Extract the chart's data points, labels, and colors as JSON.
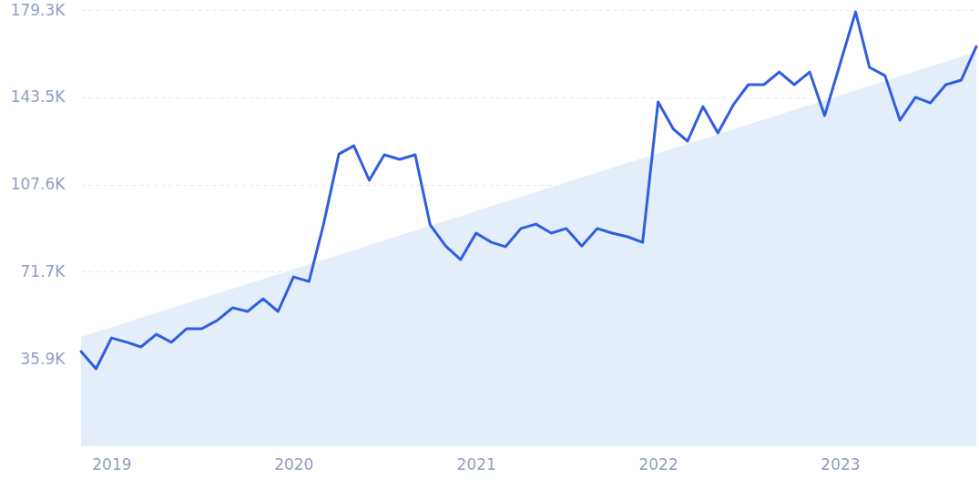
{
  "chart_data": {
    "type": "line",
    "x": [
      "2018-11",
      "2018-12",
      "2019-01",
      "2019-02",
      "2019-03",
      "2019-04",
      "2019-05",
      "2019-06",
      "2019-07",
      "2019-08",
      "2019-09",
      "2019-10",
      "2019-11",
      "2019-12",
      "2020-01",
      "2020-02",
      "2020-03",
      "2020-04",
      "2020-05",
      "2020-06",
      "2020-07",
      "2020-08",
      "2020-09",
      "2020-10",
      "2020-11",
      "2020-12",
      "2021-01",
      "2021-02",
      "2021-03",
      "2021-04",
      "2021-05",
      "2021-06",
      "2021-07",
      "2021-08",
      "2021-09",
      "2021-10",
      "2021-11",
      "2021-12",
      "2022-01",
      "2022-02",
      "2022-03",
      "2022-04",
      "2022-05",
      "2022-06",
      "2022-07",
      "2022-08",
      "2022-09",
      "2022-10",
      "2022-11",
      "2022-12",
      "2023-01",
      "2023-02",
      "2023-03",
      "2023-04",
      "2023-05",
      "2023-06",
      "2023-07",
      "2023-08",
      "2023-09",
      "2023-10"
    ],
    "series": [
      {
        "type": "area",
        "color": "#e4eefb",
        "x": [
          "2018-11",
          "2023-10"
        ],
        "values": [
          44.9,
          162.1
        ]
      },
      {
        "color": "#2f5fe0",
        "values": [
          38.9,
          31.8,
          44.5,
          42.7,
          40.8,
          46.0,
          42.7,
          48.3,
          48.3,
          51.7,
          56.9,
          55.4,
          60.6,
          55.4,
          69.6,
          67.7,
          91.0,
          120.1,
          123.5,
          109.3,
          119.8,
          117.9,
          119.8,
          91.0,
          82.3,
          76.7,
          87.6,
          83.8,
          82.0,
          89.5,
          91.3,
          87.6,
          89.5,
          82.3,
          89.5,
          87.6,
          86.1,
          83.8,
          141.5,
          130.3,
          125.4,
          139.6,
          128.8,
          140.4,
          148.6,
          148.6,
          153.8,
          148.6,
          153.8,
          135.9,
          157.2,
          178.5,
          155.7,
          152.3,
          134.0,
          143.4,
          141.1,
          148.6,
          150.5,
          164.3
        ]
      }
    ],
    "xlim": [
      "2018-11",
      "2023-10"
    ],
    "xticks": [
      "2019",
      "2020",
      "2021",
      "2022",
      "2023"
    ],
    "ylim": [
      0,
      179.3
    ],
    "yticks": [
      {
        "value": 35.9,
        "label": "35.9K"
      },
      {
        "value": 71.7,
        "label": "71.7K"
      },
      {
        "value": 107.6,
        "label": "107.6K"
      },
      {
        "value": 143.5,
        "label": "143.5K"
      },
      {
        "value": 179.3,
        "label": "179.3K"
      }
    ],
    "grid": "y"
  }
}
